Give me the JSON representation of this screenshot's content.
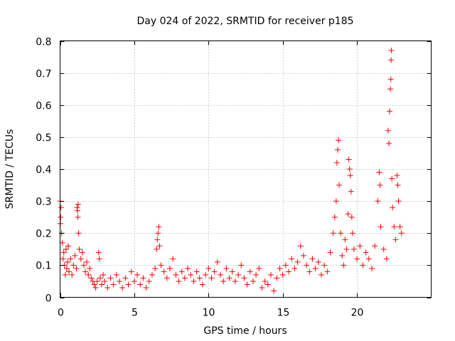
{
  "chart_data": {
    "type": "scatter",
    "title": "Day 024 of 2022, SRMTID for receiver p185",
    "xlabel": "GPS time / hours",
    "ylabel": "SRMTID / TECUs",
    "xlim": [
      0,
      25
    ],
    "ylim": [
      0,
      0.8
    ],
    "xticks": [
      0,
      5,
      10,
      15,
      20
    ],
    "xtick_labels": [
      "0",
      "5",
      "10",
      "15",
      "20"
    ],
    "yticks": [
      0,
      0.1,
      0.2,
      0.3,
      0.4,
      0.5,
      0.6,
      0.7,
      0.8
    ],
    "ytick_labels": [
      "0",
      "0.1",
      "0.2",
      "0.3",
      "0.4",
      "0.5",
      "0.6",
      "0.7",
      "0.8"
    ],
    "grid": true,
    "marker": "+",
    "series_color": "#ff0000",
    "series": [
      {
        "name": "SRMTID",
        "points": [
          [
            0.0,
            0.3
          ],
          [
            0.02,
            0.23
          ],
          [
            0.04,
            0.25
          ],
          [
            0.06,
            0.28
          ],
          [
            0.1,
            0.2
          ],
          [
            0.15,
            0.17
          ],
          [
            0.2,
            0.12
          ],
          [
            0.25,
            0.14
          ],
          [
            0.3,
            0.1
          ],
          [
            0.35,
            0.07
          ],
          [
            0.4,
            0.15
          ],
          [
            0.45,
            0.09
          ],
          [
            0.5,
            0.11
          ],
          [
            0.55,
            0.16
          ],
          [
            0.6,
            0.08
          ],
          [
            0.7,
            0.12
          ],
          [
            0.8,
            0.07
          ],
          [
            0.9,
            0.1
          ],
          [
            1.0,
            0.13
          ],
          [
            1.1,
            0.09
          ],
          [
            1.15,
            0.28
          ],
          [
            1.17,
            0.27
          ],
          [
            1.2,
            0.25
          ],
          [
            1.22,
            0.29
          ],
          [
            1.25,
            0.2
          ],
          [
            1.3,
            0.15
          ],
          [
            1.4,
            0.12
          ],
          [
            1.5,
            0.14
          ],
          [
            1.6,
            0.1
          ],
          [
            1.7,
            0.08
          ],
          [
            1.8,
            0.11
          ],
          [
            1.9,
            0.07
          ],
          [
            2.0,
            0.09
          ],
          [
            2.1,
            0.06
          ],
          [
            2.2,
            0.05
          ],
          [
            2.3,
            0.04
          ],
          [
            2.4,
            0.03
          ],
          [
            2.5,
            0.05
          ],
          [
            2.6,
            0.14
          ],
          [
            2.65,
            0.12
          ],
          [
            2.7,
            0.06
          ],
          [
            2.8,
            0.04
          ],
          [
            2.9,
            0.07
          ],
          [
            3.0,
            0.05
          ],
          [
            3.2,
            0.03
          ],
          [
            3.4,
            0.06
          ],
          [
            3.6,
            0.04
          ],
          [
            3.8,
            0.07
          ],
          [
            4.0,
            0.05
          ],
          [
            4.2,
            0.03
          ],
          [
            4.4,
            0.06
          ],
          [
            4.6,
            0.04
          ],
          [
            4.8,
            0.08
          ],
          [
            5.0,
            0.05
          ],
          [
            5.2,
            0.07
          ],
          [
            5.4,
            0.04
          ],
          [
            5.6,
            0.06
          ],
          [
            5.8,
            0.03
          ],
          [
            6.0,
            0.05
          ],
          [
            6.2,
            0.07
          ],
          [
            6.4,
            0.09
          ],
          [
            6.5,
            0.15
          ],
          [
            6.55,
            0.18
          ],
          [
            6.6,
            0.2
          ],
          [
            6.65,
            0.22
          ],
          [
            6.7,
            0.16
          ],
          [
            6.8,
            0.1
          ],
          [
            7.0,
            0.08
          ],
          [
            7.2,
            0.06
          ],
          [
            7.4,
            0.09
          ],
          [
            7.6,
            0.12
          ],
          [
            7.8,
            0.07
          ],
          [
            8.0,
            0.05
          ],
          [
            8.2,
            0.08
          ],
          [
            8.4,
            0.06
          ],
          [
            8.6,
            0.09
          ],
          [
            8.8,
            0.07
          ],
          [
            9.0,
            0.05
          ],
          [
            9.2,
            0.08
          ],
          [
            9.4,
            0.06
          ],
          [
            9.6,
            0.04
          ],
          [
            9.8,
            0.07
          ],
          [
            10.0,
            0.09
          ],
          [
            10.2,
            0.06
          ],
          [
            10.4,
            0.08
          ],
          [
            10.6,
            0.11
          ],
          [
            10.8,
            0.07
          ],
          [
            11.0,
            0.05
          ],
          [
            11.2,
            0.09
          ],
          [
            11.4,
            0.06
          ],
          [
            11.6,
            0.08
          ],
          [
            11.8,
            0.05
          ],
          [
            12.0,
            0.07
          ],
          [
            12.2,
            0.1
          ],
          [
            12.4,
            0.06
          ],
          [
            12.6,
            0.04
          ],
          [
            12.8,
            0.08
          ],
          [
            13.0,
            0.05
          ],
          [
            13.2,
            0.07
          ],
          [
            13.4,
            0.09
          ],
          [
            13.6,
            0.03
          ],
          [
            13.8,
            0.05
          ],
          [
            14.0,
            0.04
          ],
          [
            14.2,
            0.07
          ],
          [
            14.4,
            0.02
          ],
          [
            14.6,
            0.06
          ],
          [
            14.8,
            0.09
          ],
          [
            15.0,
            0.07
          ],
          [
            15.2,
            0.1
          ],
          [
            15.4,
            0.08
          ],
          [
            15.6,
            0.12
          ],
          [
            15.8,
            0.09
          ],
          [
            16.0,
            0.11
          ],
          [
            16.2,
            0.16
          ],
          [
            16.4,
            0.13
          ],
          [
            16.6,
            0.1
          ],
          [
            16.8,
            0.08
          ],
          [
            17.0,
            0.12
          ],
          [
            17.2,
            0.09
          ],
          [
            17.4,
            0.11
          ],
          [
            17.6,
            0.07
          ],
          [
            17.8,
            0.1
          ],
          [
            18.0,
            0.08
          ],
          [
            18.2,
            0.14
          ],
          [
            18.4,
            0.2
          ],
          [
            18.5,
            0.25
          ],
          [
            18.6,
            0.3
          ],
          [
            18.65,
            0.42
          ],
          [
            18.7,
            0.46
          ],
          [
            18.75,
            0.49
          ],
          [
            18.8,
            0.35
          ],
          [
            18.9,
            0.2
          ],
          [
            19.0,
            0.13
          ],
          [
            19.1,
            0.1
          ],
          [
            19.2,
            0.18
          ],
          [
            19.3,
            0.15
          ],
          [
            19.4,
            0.26
          ],
          [
            19.45,
            0.43
          ],
          [
            19.5,
            0.4
          ],
          [
            19.55,
            0.38
          ],
          [
            19.6,
            0.33
          ],
          [
            19.65,
            0.25
          ],
          [
            19.7,
            0.2
          ],
          [
            19.8,
            0.15
          ],
          [
            20.0,
            0.12
          ],
          [
            20.2,
            0.16
          ],
          [
            20.4,
            0.1
          ],
          [
            20.6,
            0.14
          ],
          [
            20.8,
            0.12
          ],
          [
            21.0,
            0.09
          ],
          [
            21.2,
            0.16
          ],
          [
            21.4,
            0.3
          ],
          [
            21.5,
            0.39
          ],
          [
            21.55,
            0.35
          ],
          [
            21.6,
            0.22
          ],
          [
            21.8,
            0.15
          ],
          [
            22.0,
            0.12
          ],
          [
            22.1,
            0.52
          ],
          [
            22.15,
            0.48
          ],
          [
            22.2,
            0.58
          ],
          [
            22.25,
            0.65
          ],
          [
            22.28,
            0.68
          ],
          [
            22.3,
            0.74
          ],
          [
            22.32,
            0.77
          ],
          [
            22.35,
            0.37
          ],
          [
            22.4,
            0.28
          ],
          [
            22.5,
            0.22
          ],
          [
            22.6,
            0.18
          ],
          [
            22.7,
            0.38
          ],
          [
            22.75,
            0.35
          ],
          [
            22.8,
            0.3
          ],
          [
            22.9,
            0.22
          ],
          [
            23.0,
            0.2
          ]
        ]
      }
    ]
  }
}
